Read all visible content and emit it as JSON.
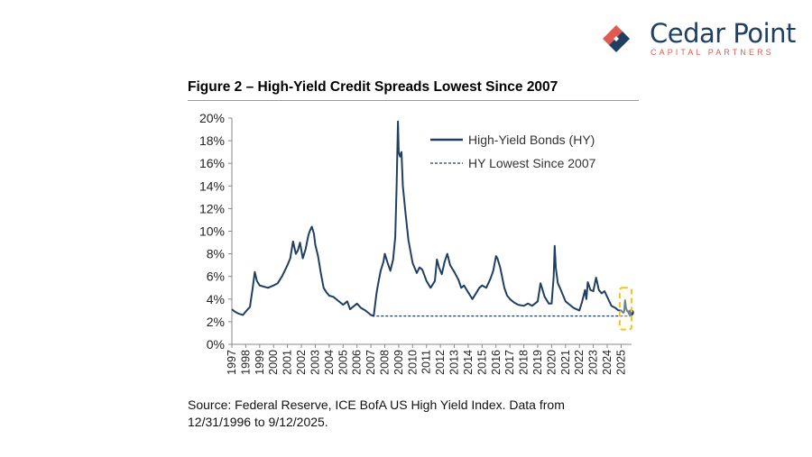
{
  "brand": {
    "name": "Cedar Point",
    "tagline": "CAPITAL PARTNERS",
    "colors": {
      "navy": "#1f3f63",
      "coral": "#e05a50"
    }
  },
  "figure": {
    "title": "Figure 2 – High-Yield Credit Spreads Lowest Since 2007",
    "source": "Source: Federal Reserve, ICE BofA US High Yield Index. Data from 12/31/1996 to 9/12/2025."
  },
  "chart_data": {
    "type": "line",
    "title": "Figure 2 – High-Yield Credit Spreads Lowest Since 2007",
    "xlabel": "",
    "ylabel": "",
    "ylim": [
      0,
      20
    ],
    "xlim": [
      1997.0,
      2025.75
    ],
    "y_ticks": [
      "0%",
      "2%",
      "4%",
      "6%",
      "8%",
      "10%",
      "12%",
      "14%",
      "16%",
      "18%",
      "20%"
    ],
    "x_ticks": [
      "1997",
      "1998",
      "1999",
      "2000",
      "2001",
      "2002",
      "2003",
      "2004",
      "2005",
      "2006",
      "2007",
      "2008",
      "2009",
      "2010",
      "2011",
      "2012",
      "2013",
      "2014",
      "2015",
      "2016",
      "2017",
      "2018",
      "2019",
      "2020",
      "2021",
      "2022",
      "2023",
      "2024",
      "2025"
    ],
    "grid": false,
    "legend_position": "top-right",
    "series": [
      {
        "name": "High-Yield Bonds (HY)",
        "color": "#1f3f63",
        "style": "solid",
        "x": [
          1997.0,
          1997.2,
          1997.5,
          1997.8,
          1998.0,
          1998.3,
          1998.5,
          1998.65,
          1998.8,
          1998.9,
          1999.0,
          1999.3,
          1999.6,
          2000.0,
          2000.3,
          2000.6,
          2000.8,
          2001.0,
          2001.2,
          2001.4,
          2001.6,
          2001.75,
          2001.9,
          2002.1,
          2002.3,
          2002.5,
          2002.6,
          2002.75,
          2002.9,
          2003.0,
          2003.2,
          2003.4,
          2003.6,
          2003.8,
          2004.0,
          2004.3,
          2004.6,
          2005.0,
          2005.3,
          2005.5,
          2005.8,
          2006.0,
          2006.3,
          2006.6,
          2007.0,
          2007.2,
          2007.4,
          2007.5,
          2007.7,
          2007.9,
          2008.0,
          2008.2,
          2008.4,
          2008.6,
          2008.75,
          2008.85,
          2008.95,
          2009.0,
          2009.1,
          2009.2,
          2009.3,
          2009.5,
          2009.7,
          2010.0,
          2010.3,
          2010.5,
          2010.7,
          2011.0,
          2011.3,
          2011.6,
          2011.75,
          2011.9,
          2012.1,
          2012.3,
          2012.5,
          2012.7,
          2013.0,
          2013.3,
          2013.5,
          2013.7,
          2014.0,
          2014.3,
          2014.5,
          2014.8,
          2015.0,
          2015.3,
          2015.6,
          2015.8,
          2016.0,
          2016.1,
          2016.3,
          2016.6,
          2016.8,
          2017.0,
          2017.3,
          2017.6,
          2018.0,
          2018.3,
          2018.6,
          2018.8,
          2019.0,
          2019.2,
          2019.5,
          2019.8,
          2020.0,
          2020.15,
          2020.22,
          2020.3,
          2020.45,
          2020.6,
          2020.8,
          2021.0,
          2021.3,
          2021.6,
          2022.0,
          2022.2,
          2022.4,
          2022.5,
          2022.6,
          2022.8,
          2023.0,
          2023.2,
          2023.4,
          2023.6,
          2023.8,
          2024.0,
          2024.3,
          2024.6,
          2024.8,
          2025.0,
          2025.15,
          2025.22,
          2025.28,
          2025.35,
          2025.45,
          2025.55,
          2025.7
        ],
        "values": [
          3.1,
          2.9,
          2.7,
          2.6,
          2.9,
          3.3,
          5.0,
          6.4,
          5.6,
          5.4,
          5.2,
          5.1,
          5.0,
          5.2,
          5.4,
          6.0,
          6.5,
          7.0,
          7.6,
          9.1,
          8.0,
          8.3,
          9.0,
          7.6,
          8.4,
          9.6,
          10.0,
          10.4,
          9.8,
          8.8,
          7.8,
          6.3,
          5.0,
          4.6,
          4.3,
          4.2,
          3.9,
          3.5,
          3.8,
          3.1,
          3.4,
          3.6,
          3.2,
          3.0,
          2.6,
          2.5,
          4.5,
          5.2,
          6.5,
          7.3,
          8.0,
          7.2,
          6.5,
          7.5,
          9.5,
          14.0,
          19.7,
          17.0,
          16.6,
          17.0,
          14.0,
          11.5,
          9.2,
          7.2,
          6.3,
          6.8,
          6.6,
          5.6,
          5.0,
          5.6,
          7.5,
          6.8,
          6.2,
          7.3,
          8.0,
          7.0,
          6.4,
          5.7,
          5.0,
          5.2,
          4.6,
          4.0,
          4.4,
          5.0,
          5.2,
          5.0,
          5.8,
          6.5,
          7.8,
          7.6,
          6.8,
          5.0,
          4.3,
          4.0,
          3.7,
          3.5,
          3.4,
          3.6,
          3.4,
          3.6,
          3.8,
          5.4,
          4.2,
          3.6,
          3.6,
          6.0,
          8.7,
          6.8,
          5.4,
          5.0,
          4.4,
          3.8,
          3.5,
          3.2,
          3.0,
          3.8,
          4.8,
          4.0,
          5.5,
          4.8,
          4.7,
          5.9,
          4.8,
          4.5,
          4.7,
          4.2,
          3.4,
          3.2,
          3.0,
          3.0,
          2.8,
          2.9,
          3.9,
          3.2,
          2.9,
          2.9,
          2.8
        ]
      },
      {
        "name": "HY Lowest Since 2007",
        "color": "#1f3f63",
        "style": "dashed",
        "x": [
          2007.4,
          2025.75
        ],
        "values": [
          2.5,
          2.5
        ]
      }
    ],
    "annotations": [
      {
        "type": "highlight-box",
        "color": "#f2c230",
        "x_range": [
          2024.9,
          2025.75
        ],
        "y_range": [
          1.3,
          5.0
        ]
      }
    ]
  }
}
